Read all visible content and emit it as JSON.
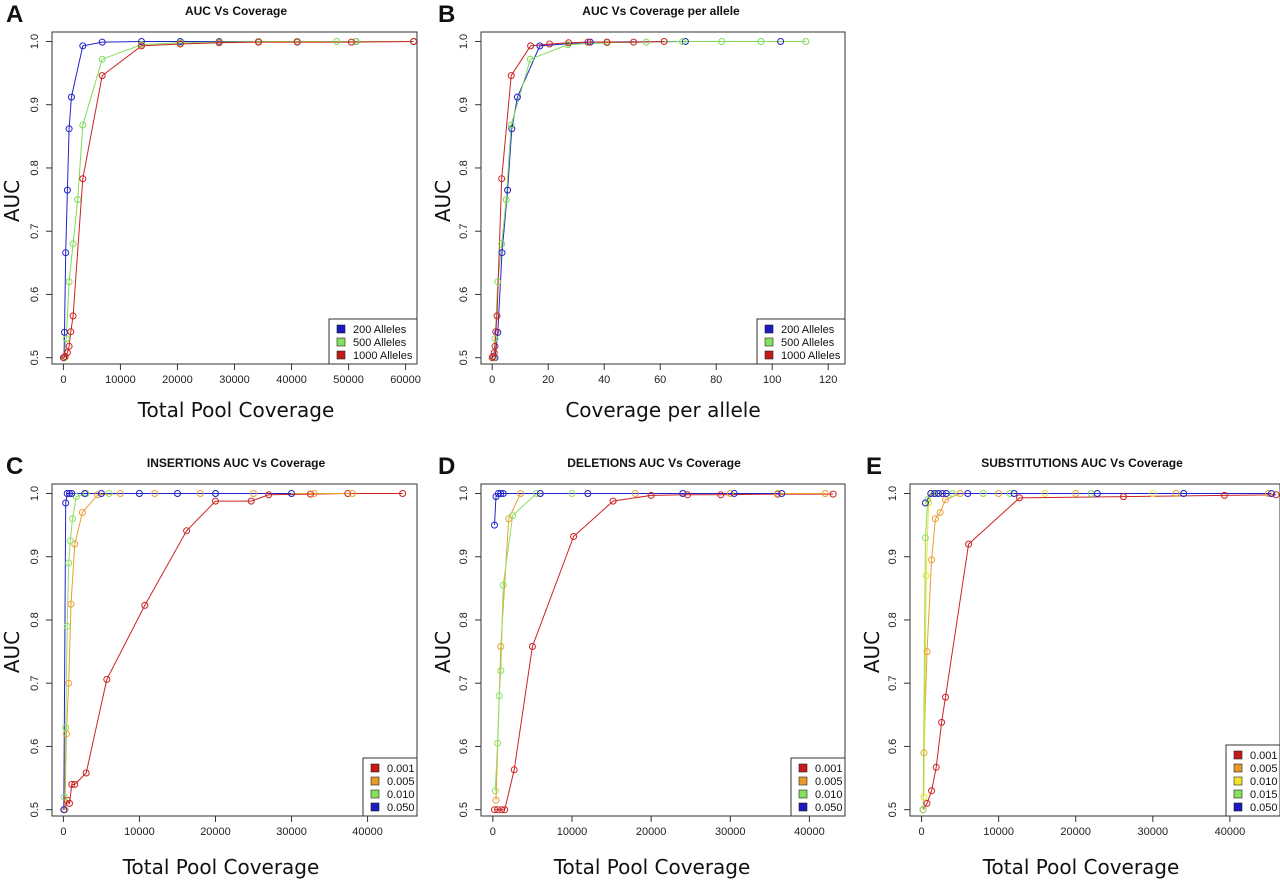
{
  "chart_data": [
    {
      "panel": "A",
      "type": "line",
      "title": "AUC Vs Coverage",
      "xlabel": "Total Pool Coverage",
      "ylabel": "AUC",
      "xlim": [
        -2000,
        62000
      ],
      "ylim": [
        0.49,
        1.015
      ],
      "xticks": [
        0,
        10000,
        20000,
        30000,
        40000,
        50000,
        60000
      ],
      "yticks": [
        0.5,
        0.6,
        0.7,
        0.8,
        0.9,
        1.0
      ],
      "legend_position": "bottom-right",
      "legend_box_width": 88,
      "series": [
        {
          "name": "200   Alleles",
          "color": "#2222cc",
          "swatch": "#1a1abf",
          "x": [
            100,
            200,
            400,
            700,
            1000,
            1400,
            3400,
            6800,
            13700,
            20500,
            27300,
            34200,
            41000,
            51300,
            61400
          ],
          "y": [
            0.5,
            0.54,
            0.666,
            0.765,
            0.862,
            0.912,
            0.993,
            0.999,
            1.0,
            1.0,
            1.0,
            1.0,
            1.0,
            1.0,
            1.0
          ]
        },
        {
          "name": "500   Alleles",
          "color": "#7fdc57",
          "swatch": "#86e05f",
          "x": [
            250,
            500,
            1000,
            1700,
            2500,
            3400,
            6800,
            13700,
            20500,
            27300,
            34200,
            41000,
            47900,
            51300,
            61400
          ],
          "y": [
            0.5,
            0.53,
            0.62,
            0.68,
            0.75,
            0.868,
            0.972,
            0.995,
            0.998,
            0.999,
            1.0,
            1.0,
            1.0,
            1.0,
            1.0
          ]
        },
        {
          "name": "1000 Alleles",
          "color": "#cc2222",
          "swatch": "#c41a1a",
          "x": [
            0,
            300,
            700,
            1000,
            1300,
            1700,
            3400,
            6800,
            13700,
            20500,
            27300,
            34200,
            41000,
            50500,
            61400
          ],
          "y": [
            0.5,
            0.502,
            0.508,
            0.518,
            0.541,
            0.566,
            0.783,
            0.946,
            0.993,
            0.996,
            0.998,
            0.999,
            0.999,
            0.999,
            1.0
          ]
        }
      ]
    },
    {
      "panel": "B",
      "type": "line",
      "title": "AUC Vs Coverage per allele",
      "xlabel": "Coverage per allele",
      "ylabel": "AUC",
      "xlim": [
        -4,
        126
      ],
      "ylim": [
        0.49,
        1.015
      ],
      "xticks": [
        0,
        20,
        40,
        60,
        80,
        100,
        120
      ],
      "yticks": [
        0.5,
        0.6,
        0.7,
        0.8,
        0.9,
        1.0
      ],
      "legend_position": "bottom-right",
      "legend_box_width": 88,
      "series": [
        {
          "name": "200   Alleles",
          "color": "#2222cc",
          "swatch": "#1a1abf",
          "x": [
            1,
            2,
            3.5,
            5.5,
            7,
            9,
            17,
            35,
            69,
            103
          ],
          "y": [
            0.5,
            0.54,
            0.666,
            0.765,
            0.862,
            0.912,
            0.993,
            0.999,
            1.0,
            1.0
          ]
        },
        {
          "name": "500   Alleles",
          "color": "#7fdc57",
          "swatch": "#86e05f",
          "x": [
            0.5,
            1,
            2,
            3.4,
            5,
            6.8,
            13.6,
            27,
            41,
            55,
            68,
            82,
            96,
            112
          ],
          "y": [
            0.5,
            0.53,
            0.62,
            0.68,
            0.75,
            0.868,
            0.972,
            0.995,
            0.998,
            0.999,
            1.0,
            1.0,
            1.0,
            1.0
          ]
        },
        {
          "name": "1000 Alleles",
          "color": "#cc2222",
          "swatch": "#c41a1a",
          "x": [
            0,
            0.3,
            0.7,
            1,
            1.3,
            1.7,
            3.4,
            6.8,
            13.7,
            20.5,
            27.3,
            34.2,
            41,
            50.5,
            61.4
          ],
          "y": [
            0.5,
            0.502,
            0.508,
            0.518,
            0.541,
            0.566,
            0.783,
            0.946,
            0.993,
            0.996,
            0.998,
            0.999,
            0.999,
            0.999,
            1.0
          ]
        }
      ]
    },
    {
      "panel": "C",
      "type": "line",
      "title": "INSERTIONS AUC Vs Coverage",
      "xlabel": "Total Pool Coverage",
      "ylabel": "AUC",
      "xlim": [
        -1500,
        46500
      ],
      "ylim": [
        0.49,
        1.015
      ],
      "xticks": [
        0,
        10000,
        20000,
        30000,
        40000
      ],
      "yticks": [
        0.5,
        0.6,
        0.7,
        0.8,
        0.9,
        1.0
      ],
      "legend_position": "bottom-right",
      "legend_box_width": 54,
      "series": [
        {
          "name": "0.001",
          "color": "#cc2222",
          "swatch": "#c41a1a",
          "x": [
            200,
            500,
            800,
            1100,
            1500,
            3000,
            5700,
            10700,
            16200,
            20000,
            24700,
            27000,
            32500,
            37400,
            44600
          ],
          "y": [
            0.5,
            0.515,
            0.51,
            0.54,
            0.54,
            0.558,
            0.706,
            0.823,
            0.941,
            0.988,
            0.988,
            0.998,
            0.999,
            1.0,
            1.0
          ]
        },
        {
          "name": "0.005",
          "color": "#e8a030",
          "swatch": "#e59a2a",
          "x": [
            200,
            400,
            700,
            1000,
            1500,
            2500,
            4500,
            7500,
            12000,
            18000,
            25000,
            33000,
            38000
          ],
          "y": [
            0.5,
            0.62,
            0.7,
            0.825,
            0.92,
            0.97,
            0.998,
            1.0,
            1.0,
            1.0,
            1.0,
            1.0,
            1.0
          ]
        },
        {
          "name": "0.010",
          "color": "#8ee060",
          "swatch": "#86e05f",
          "x": [
            100,
            300,
            500,
            700,
            900,
            1200,
            1700,
            3000,
            6000,
            10000,
            15000,
            20000,
            30000
          ],
          "y": [
            0.52,
            0.63,
            0.79,
            0.89,
            0.925,
            0.96,
            0.995,
            1.0,
            1.0,
            1.0,
            1.0,
            1.0,
            1.0
          ]
        },
        {
          "name": "0.050",
          "color": "#2222cc",
          "swatch": "#1a1abf",
          "x": [
            50,
            300,
            500,
            800,
            1100,
            2800,
            5000,
            10000,
            15000,
            20000,
            30000
          ],
          "y": [
            0.5,
            0.985,
            1.0,
            1.0,
            1.0,
            1.0,
            1.0,
            1.0,
            1.0,
            1.0,
            1.0
          ]
        }
      ]
    },
    {
      "panel": "D",
      "type": "line",
      "title": "DELETIONS AUC Vs Coverage",
      "xlabel": "Total Pool Coverage",
      "ylabel": "AUC",
      "xlim": [
        -1500,
        44500
      ],
      "ylim": [
        0.49,
        1.015
      ],
      "xticks": [
        0,
        10000,
        20000,
        30000,
        40000
      ],
      "yticks": [
        0.5,
        0.6,
        0.7,
        0.8,
        0.9,
        1.0
      ],
      "legend_position": "bottom-right",
      "legend_box_width": 54,
      "series": [
        {
          "name": "0.001",
          "color": "#cc2222",
          "swatch": "#c41a1a",
          "x": [
            200,
            600,
            1100,
            1500,
            2700,
            5000,
            10200,
            15200,
            20000,
            24600,
            28800,
            36000,
            43000
          ],
          "y": [
            0.5,
            0.5,
            0.5,
            0.5,
            0.563,
            0.758,
            0.932,
            0.988,
            0.997,
            0.998,
            0.998,
            0.999,
            0.999
          ]
        },
        {
          "name": "0.005",
          "color": "#e8a030",
          "swatch": "#e59a2a",
          "x": [
            400,
            1000,
            2000,
            3500,
            6000,
            12000,
            18000,
            24000,
            30000,
            36000,
            42000
          ],
          "y": [
            0.515,
            0.758,
            0.96,
            1.0,
            1.0,
            1.0,
            1.0,
            1.0,
            1.0,
            1.0,
            1.0
          ]
        },
        {
          "name": "0.010",
          "color": "#8ee060",
          "swatch": "#86e05f",
          "x": [
            300,
            600,
            800,
            1000,
            1300,
            2500,
            5500,
            10000
          ],
          "y": [
            0.53,
            0.605,
            0.68,
            0.72,
            0.855,
            0.965,
            1.0,
            1.0
          ]
        },
        {
          "name": "0.050",
          "color": "#2222cc",
          "swatch": "#1a1abf",
          "x": [
            200,
            400,
            700,
            1000,
            1300,
            6000,
            12000,
            24000,
            30500,
            36500
          ],
          "y": [
            0.95,
            0.995,
            1.0,
            1.0,
            1.0,
            1.0,
            1.0,
            1.0,
            1.0,
            1.0
          ]
        }
      ]
    },
    {
      "panel": "E",
      "type": "line",
      "title": "SUBSTITUTIONS AUC Vs Coverage",
      "xlabel": "Total Pool Coverage",
      "ylabel": "AUC",
      "xlim": [
        -1500,
        46500
      ],
      "ylim": [
        0.49,
        1.015
      ],
      "xticks": [
        0,
        10000,
        20000,
        30000,
        40000
      ],
      "yticks": [
        0.5,
        0.6,
        0.7,
        0.8,
        0.9,
        1.0
      ],
      "legend_position": "bottom-right",
      "legend_box_width": 54,
      "series": [
        {
          "name": "0.001",
          "color": "#cc2222",
          "swatch": "#c41a1a",
          "x": [
            200,
            700,
            1300,
            1900,
            2600,
            3100,
            6100,
            12700,
            26200,
            39300,
            46000
          ],
          "y": [
            0.5,
            0.51,
            0.53,
            0.567,
            0.638,
            0.678,
            0.92,
            0.993,
            0.995,
            0.997,
            0.998
          ]
        },
        {
          "name": "0.005",
          "color": "#e8a030",
          "swatch": "#e59a2a",
          "x": [
            300,
            700,
            1300,
            1800,
            2400,
            3100,
            5000,
            10000,
            20000,
            33000,
            45000
          ],
          "y": [
            0.59,
            0.75,
            0.895,
            0.96,
            0.97,
            0.99,
            1.0,
            1.0,
            1.0,
            1.0,
            1.0
          ]
        },
        {
          "name": "0.010",
          "color": "#f0e030",
          "swatch": "#f0e32a",
          "x": [
            300,
            600,
            900,
            1200,
            1600,
            2200,
            4000,
            8000,
            16000,
            30000
          ],
          "y": [
            0.52,
            0.87,
            0.985,
            1.0,
            1.0,
            1.0,
            1.0,
            1.0,
            1.0,
            1.0
          ]
        },
        {
          "name": "0.015",
          "color": "#8ee060",
          "swatch": "#86e05f",
          "x": [
            200,
            500,
            800,
            1200,
            2000,
            4000,
            8000,
            11500,
            22000,
            34000
          ],
          "y": [
            0.5,
            0.93,
            0.99,
            1.0,
            1.0,
            1.0,
            1.0,
            1.0,
            1.0,
            1.0
          ]
        },
        {
          "name": "0.050",
          "color": "#2222cc",
          "swatch": "#1a1abf",
          "x": [
            500,
            1200,
            1700,
            2200,
            2700,
            3200,
            6000,
            12000,
            22800,
            34000,
            45400
          ],
          "y": [
            0.985,
            1.0,
            1.0,
            1.0,
            1.0,
            1.0,
            1.0,
            1.0,
            1.0,
            1.0,
            1.0
          ]
        }
      ]
    }
  ]
}
